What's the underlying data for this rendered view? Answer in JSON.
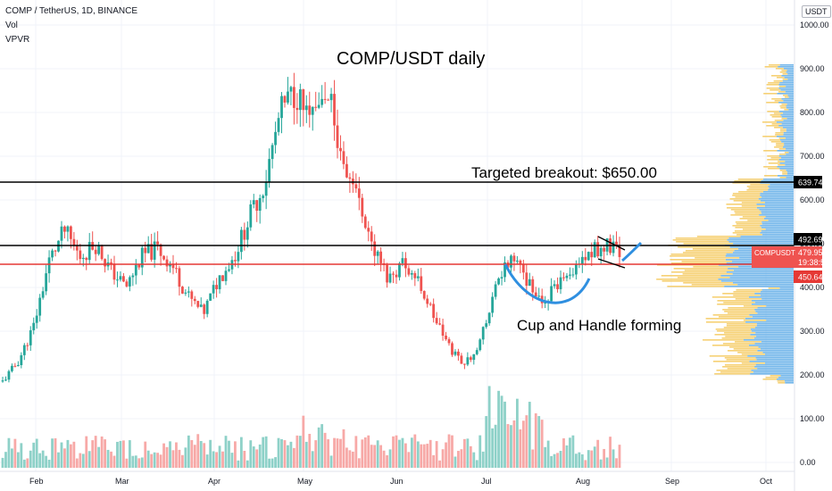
{
  "header": {
    "symbol_line": "COMP / TetherUS, 1D, BINANCE",
    "indicator_vol": "Vol",
    "indicator_vpvr": "VPVR"
  },
  "currency_badge": "USDT",
  "annotations": {
    "title": "COMP/USDT  daily",
    "breakout": "Targeted breakout:  $650.00",
    "pattern": "Cup and Handle forming"
  },
  "price_tags": {
    "level_high": "639.74",
    "level_resist": "492.69",
    "symbol": "COMPUSDT",
    "last": "479.95",
    "countdown": "19:38:54",
    "level_support": "450.64"
  },
  "colors": {
    "up": "#26a69a",
    "down": "#ef5350",
    "vol_up": "#8ed1c8",
    "vol_down": "#f7a9a7",
    "support_line": "#e53935",
    "cup_curve": "#2f8fe0",
    "vpvr_blue": "#5aa9e6",
    "vpvr_yellow": "#f4c95d"
  },
  "chart_data": {
    "type": "candlestick",
    "y_axis_labels": [
      "1000.00",
      "900.00",
      "800.00",
      "700.00",
      "600.00",
      "500.00",
      "400.00",
      "300.00",
      "200.00",
      "100.00",
      "0.00"
    ],
    "x_axis_labels": [
      "Feb",
      "Mar",
      "Apr",
      "May",
      "Jun",
      "Jul",
      "Aug",
      "Sep",
      "Oct"
    ],
    "ylim": [
      0,
      1000
    ],
    "levels": [
      639.74,
      492.69,
      450.64
    ],
    "last_price": 479.95,
    "candles": [
      {
        "month": "Jan",
        "close": 185
      },
      {
        "month": "Jan",
        "close": 230
      },
      {
        "month": "Feb",
        "close": 310
      },
      {
        "month": "Feb",
        "close": 460
      },
      {
        "month": "Feb",
        "close": 530
      },
      {
        "month": "Feb",
        "close": 470
      },
      {
        "month": "Feb",
        "close": 500
      },
      {
        "month": "Mar",
        "close": 440
      },
      {
        "month": "Mar",
        "close": 400
      },
      {
        "month": "Mar",
        "close": 470
      },
      {
        "month": "Mar",
        "close": 490
      },
      {
        "month": "Mar",
        "close": 450
      },
      {
        "month": "Apr",
        "close": 380
      },
      {
        "month": "Apr",
        "close": 340
      },
      {
        "month": "Apr",
        "close": 420
      },
      {
        "month": "Apr",
        "close": 470
      },
      {
        "month": "Apr",
        "close": 560
      },
      {
        "month": "Apr",
        "close": 640
      },
      {
        "month": "May",
        "close": 800
      },
      {
        "month": "May",
        "close": 850
      },
      {
        "month": "May",
        "close": 770
      },
      {
        "month": "May",
        "close": 860
      },
      {
        "month": "May",
        "close": 690
      },
      {
        "month": "May",
        "close": 620
      },
      {
        "month": "Jun",
        "close": 490
      },
      {
        "month": "Jun",
        "close": 420
      },
      {
        "month": "Jun",
        "close": 460
      },
      {
        "month": "Jun",
        "close": 410
      },
      {
        "month": "Jun",
        "close": 330
      },
      {
        "month": "Jul",
        "close": 260
      },
      {
        "month": "Jul",
        "close": 225
      },
      {
        "month": "Jul",
        "close": 280
      },
      {
        "month": "Jul",
        "close": 420
      },
      {
        "month": "Jul",
        "close": 470
      },
      {
        "month": "Jul",
        "close": 420
      },
      {
        "month": "Jul",
        "close": 370
      },
      {
        "month": "Aug",
        "close": 400
      },
      {
        "month": "Aug",
        "close": 430
      },
      {
        "month": "Aug",
        "close": 480
      },
      {
        "month": "Aug",
        "close": 495
      },
      {
        "month": "Aug",
        "close": 480
      }
    ]
  }
}
